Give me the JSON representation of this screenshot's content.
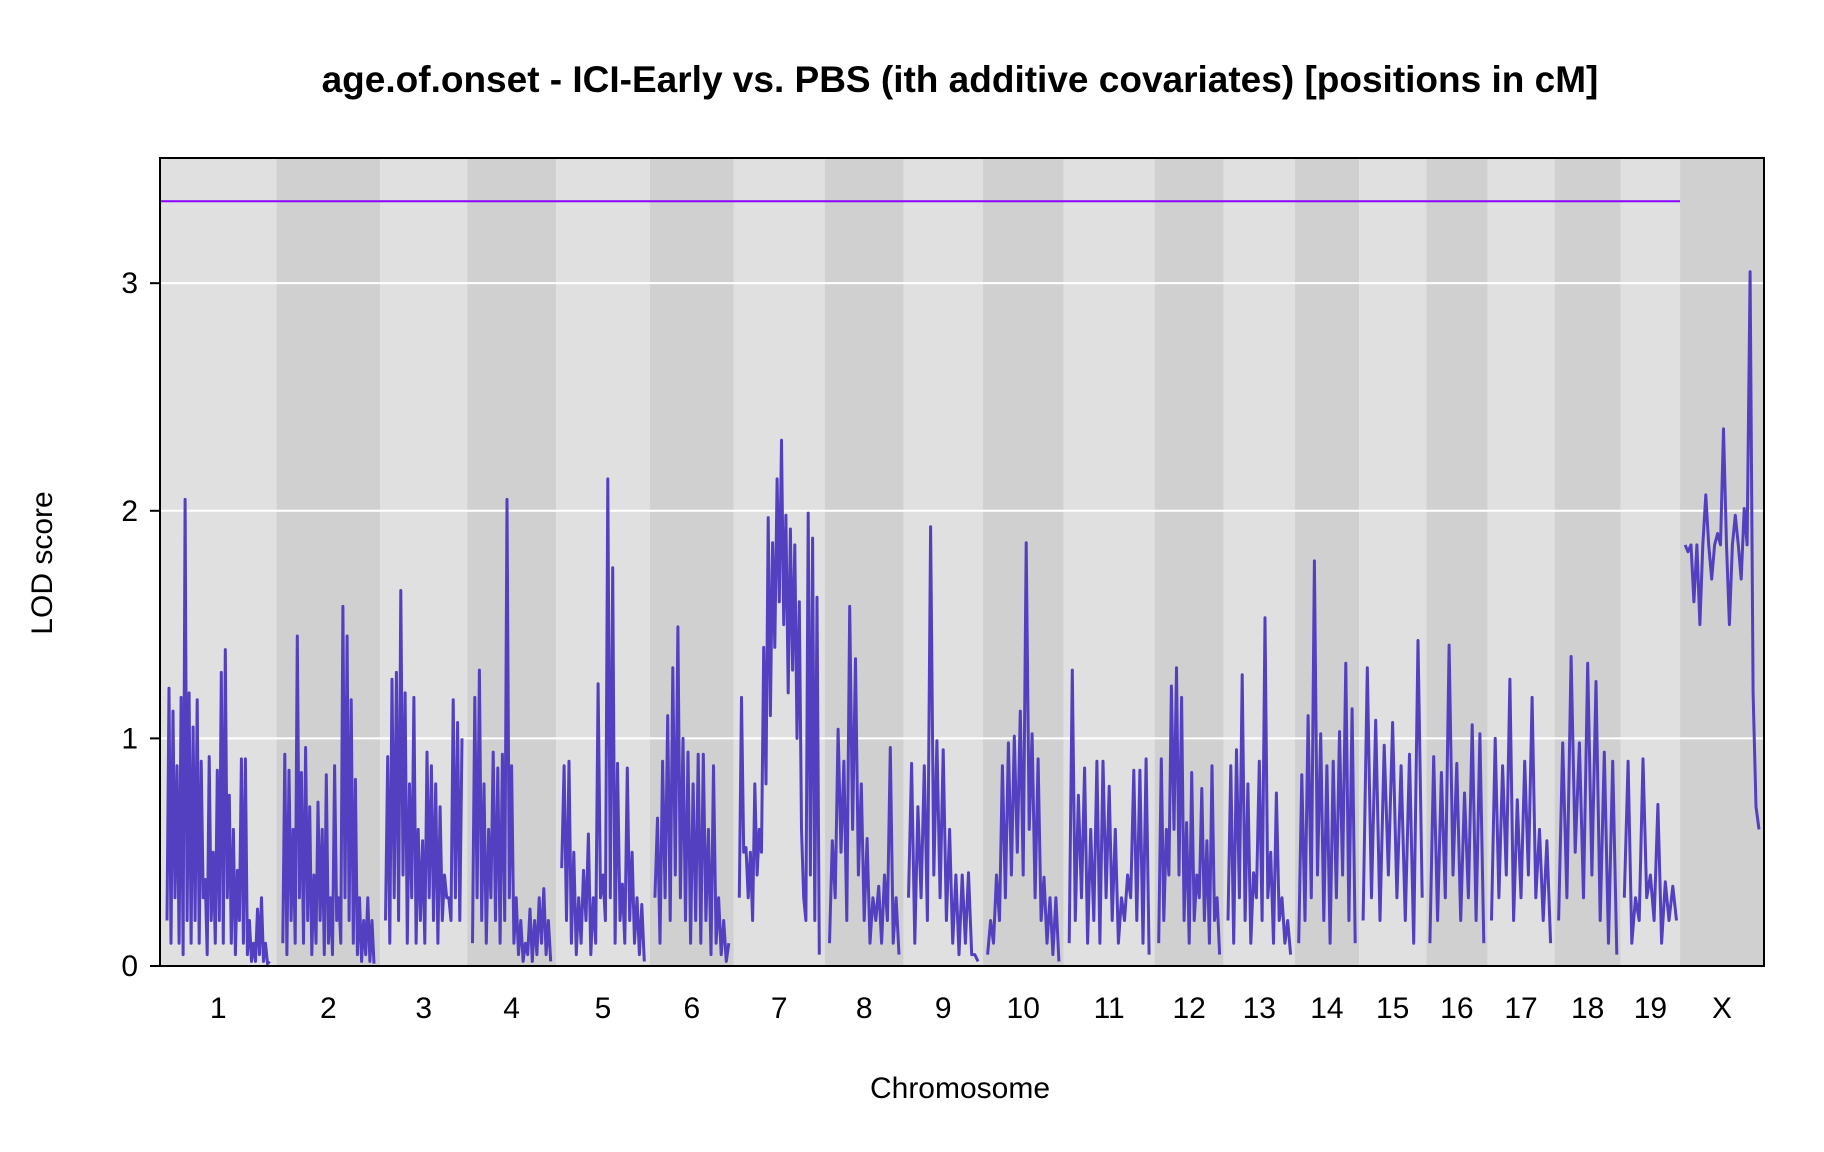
{
  "chart_data": {
    "type": "line",
    "title": "age.of.onset - ICI-Early vs. PBS (ith additive covariates) [positions in cM]",
    "xlabel": "Chromosome",
    "ylabel": "LOD score",
    "ylim": [
      0,
      3.55
    ],
    "yticks": [
      0,
      1,
      2,
      3
    ],
    "grid": true,
    "threshold": 3.36,
    "chromosomes": [
      "1",
      "2",
      "3",
      "4",
      "5",
      "6",
      "7",
      "8",
      "9",
      "10",
      "11",
      "12",
      "13",
      "14",
      "15",
      "16",
      "17",
      "18",
      "19",
      "X"
    ],
    "series": [
      {
        "values_by_chromosome": {
          "1": [
            0.2,
            1.22,
            0.1,
            1.12,
            0.3,
            0.88,
            0.1,
            1.18,
            0.05,
            2.05,
            0.2,
            1.2,
            0.1,
            1.05,
            0.2,
            1.17,
            0.1,
            0.9,
            0.3,
            0.38,
            0.05,
            0.92,
            0.2,
            0.5,
            0.1,
            0.86,
            0.2,
            1.29,
            0.1,
            1.39,
            0.3,
            0.75,
            0.1,
            0.6,
            0.05,
            0.42,
            0.2,
            0.91,
            0.1,
            0.91,
            0.05,
            0.2,
            0.02,
            0.1,
            0.02,
            0.25,
            0.05,
            0.3,
            0.02,
            0.1,
            0.01,
            0.02
          ],
          "2": [
            0.1,
            0.93,
            0.05,
            0.86,
            0.2,
            0.6,
            0.1,
            1.45,
            0.3,
            0.85,
            0.1,
            0.96,
            0.2,
            0.7,
            0.05,
            0.4,
            0.1,
            0.72,
            0.2,
            0.6,
            0.05,
            0.84,
            0.1,
            0.3,
            0.05,
            0.88,
            0.2,
            0.3,
            0.1,
            1.58,
            0.3,
            1.45,
            0.2,
            1.17,
            0.1,
            0.82,
            0.05,
            0.3,
            0.02,
            0.2,
            0.05,
            0.3,
            0.02,
            0.2,
            0.01
          ],
          "3": [
            0.2,
            0.92,
            0.1,
            1.26,
            0.3,
            1.29,
            0.2,
            1.65,
            0.4,
            1.2,
            0.1,
            0.8,
            0.3,
            1.18,
            0.1,
            0.6,
            0.2,
            0.55,
            0.1,
            0.94,
            0.3,
            0.88,
            0.2,
            0.8,
            0.1,
            0.7,
            0.2,
            0.4,
            0.3,
            0.3,
            0.2,
            1.17,
            0.3,
            1.07,
            0.2,
            1.0
          ],
          "4": [
            0.1,
            1.18,
            0.3,
            1.3,
            0.2,
            0.8,
            0.1,
            0.6,
            0.3,
            0.94,
            0.2,
            0.87,
            0.1,
            0.93,
            0.2,
            2.05,
            0.3,
            0.88,
            0.1,
            0.3,
            0.05,
            0.2,
            0.02,
            0.1,
            0.05,
            0.25,
            0.02,
            0.2,
            0.05,
            0.3,
            0.1,
            0.34,
            0.05,
            0.2,
            0.02
          ],
          "5": [
            0.43,
            0.88,
            0.2,
            0.9,
            0.1,
            0.5,
            0.05,
            0.3,
            0.1,
            0.42,
            0.2,
            0.58,
            0.05,
            0.3,
            0.1,
            1.24,
            0.3,
            0.4,
            0.2,
            2.14,
            0.3,
            1.75,
            0.1,
            0.89,
            0.2,
            0.36,
            0.1,
            0.87,
            0.2,
            0.5,
            0.1,
            0.3,
            0.05,
            0.27,
            0.02
          ],
          "6": [
            0.3,
            0.65,
            0.1,
            0.9,
            0.3,
            1.1,
            0.2,
            1.31,
            0.4,
            1.49,
            0.3,
            1.0,
            0.2,
            0.94,
            0.1,
            0.8,
            0.2,
            0.93,
            0.1,
            0.93,
            0.2,
            0.6,
            0.05,
            0.88,
            0.1,
            0.3,
            0.05,
            0.2,
            0.02,
            0.1
          ],
          "7": [
            0.3,
            1.18,
            0.5,
            0.52,
            0.3,
            0.5,
            0.2,
            0.8,
            0.4,
            0.6,
            0.5,
            1.4,
            0.8,
            1.97,
            1.1,
            1.86,
            1.4,
            2.14,
            1.6,
            2.31,
            1.5,
            1.98,
            1.2,
            1.92,
            1.3,
            1.85,
            1.0,
            1.6,
            0.6,
            0.3,
            0.2,
            1.99,
            0.4,
            1.88,
            0.2,
            1.62,
            0.05
          ],
          "8": [
            0.1,
            0.55,
            0.3,
            1.04,
            0.5,
            0.9,
            0.2,
            1.58,
            0.6,
            1.35,
            0.4,
            0.8,
            0.2,
            0.56,
            0.1,
            0.3,
            0.2,
            0.35,
            0.1,
            0.4,
            0.2,
            0.96,
            0.1,
            0.3,
            0.05
          ],
          "9": [
            0.3,
            0.89,
            0.1,
            0.7,
            0.3,
            0.88,
            0.2,
            1.93,
            0.4,
            0.99,
            0.3,
            0.95,
            0.2,
            0.6,
            0.1,
            0.4,
            0.05,
            0.4,
            0.1,
            0.41,
            0.05,
            0.05,
            0.02
          ],
          "10": [
            0.05,
            0.2,
            0.1,
            0.4,
            0.2,
            0.88,
            0.3,
            0.98,
            0.4,
            1.01,
            0.5,
            1.12,
            0.4,
            1.86,
            0.6,
            1.02,
            0.3,
            0.91,
            0.2,
            0.39,
            0.1,
            0.3,
            0.05,
            0.3,
            0.02
          ],
          "11": [
            0.1,
            1.3,
            0.2,
            0.75,
            0.3,
            0.87,
            0.1,
            0.6,
            0.2,
            0.9,
            0.1,
            0.9,
            0.3,
            0.79,
            0.2,
            0.6,
            0.1,
            0.3,
            0.2,
            0.4,
            0.3,
            0.86,
            0.2,
            0.86,
            0.1,
            0.91,
            0.05
          ],
          "12": [
            0.1,
            0.91,
            0.2,
            0.6,
            0.4,
            1.23,
            0.6,
            1.31,
            0.4,
            1.18,
            0.2,
            0.63,
            0.1,
            0.85,
            0.2,
            0.4,
            0.3,
            0.78,
            0.2,
            0.55,
            0.1,
            0.88,
            0.2,
            0.3,
            0.05
          ],
          "13": [
            0.2,
            0.88,
            0.1,
            0.95,
            0.3,
            1.28,
            0.2,
            0.8,
            0.1,
            0.41,
            0.3,
            0.9,
            0.2,
            1.53,
            0.3,
            0.5,
            0.1,
            0.76,
            0.2,
            0.3,
            0.1,
            0.2,
            0.05
          ],
          "14": [
            0.1,
            0.84,
            0.2,
            1.1,
            0.3,
            1.78,
            0.4,
            1.02,
            0.2,
            0.88,
            0.1,
            0.9,
            0.3,
            1.03,
            0.4,
            1.33,
            0.2,
            1.13,
            0.1
          ],
          "15": [
            0.2,
            1.31,
            0.3,
            1.08,
            0.2,
            0.97,
            0.4,
            1.07,
            0.3,
            0.88,
            0.2,
            0.93,
            0.1,
            1.43,
            0.3
          ],
          "16": [
            0.1,
            0.92,
            0.2,
            0.85,
            0.3,
            1.41,
            0.4,
            0.89,
            0.2,
            0.76,
            0.3,
            1.06,
            0.2,
            1.02,
            0.1
          ],
          "17": [
            0.2,
            1.0,
            0.3,
            0.88,
            0.4,
            1.26,
            0.2,
            0.73,
            0.3,
            0.9,
            0.4,
            1.18,
            0.3,
            0.6,
            0.2,
            0.55,
            0.1
          ],
          "18": [
            0.2,
            0.98,
            0.3,
            1.36,
            0.5,
            0.98,
            0.3,
            1.33,
            0.4,
            1.25,
            0.2,
            0.94,
            0.1,
            0.9,
            0.05
          ],
          "19": [
            0.3,
            0.9,
            0.1,
            0.3,
            0.2,
            0.91,
            0.3,
            0.4,
            0.2,
            0.71,
            0.1,
            0.37,
            0.2,
            0.35,
            0.2
          ],
          "X": [
            1.85,
            1.82,
            1.85,
            1.6,
            1.85,
            1.5,
            1.85,
            2.07,
            1.85,
            1.7,
            1.85,
            1.9,
            1.85,
            2.36,
            1.85,
            1.5,
            1.85,
            1.98,
            1.85,
            1.7,
            2.01,
            1.85,
            3.05,
            1.2,
            0.7,
            0.6
          ]
        }
      }
    ]
  },
  "colors": {
    "series": "#5240C0",
    "threshold": "#8B00FF",
    "band_light": "#E0E0E0",
    "band_dark": "#D0D0D0",
    "grid": "#ffffff"
  }
}
